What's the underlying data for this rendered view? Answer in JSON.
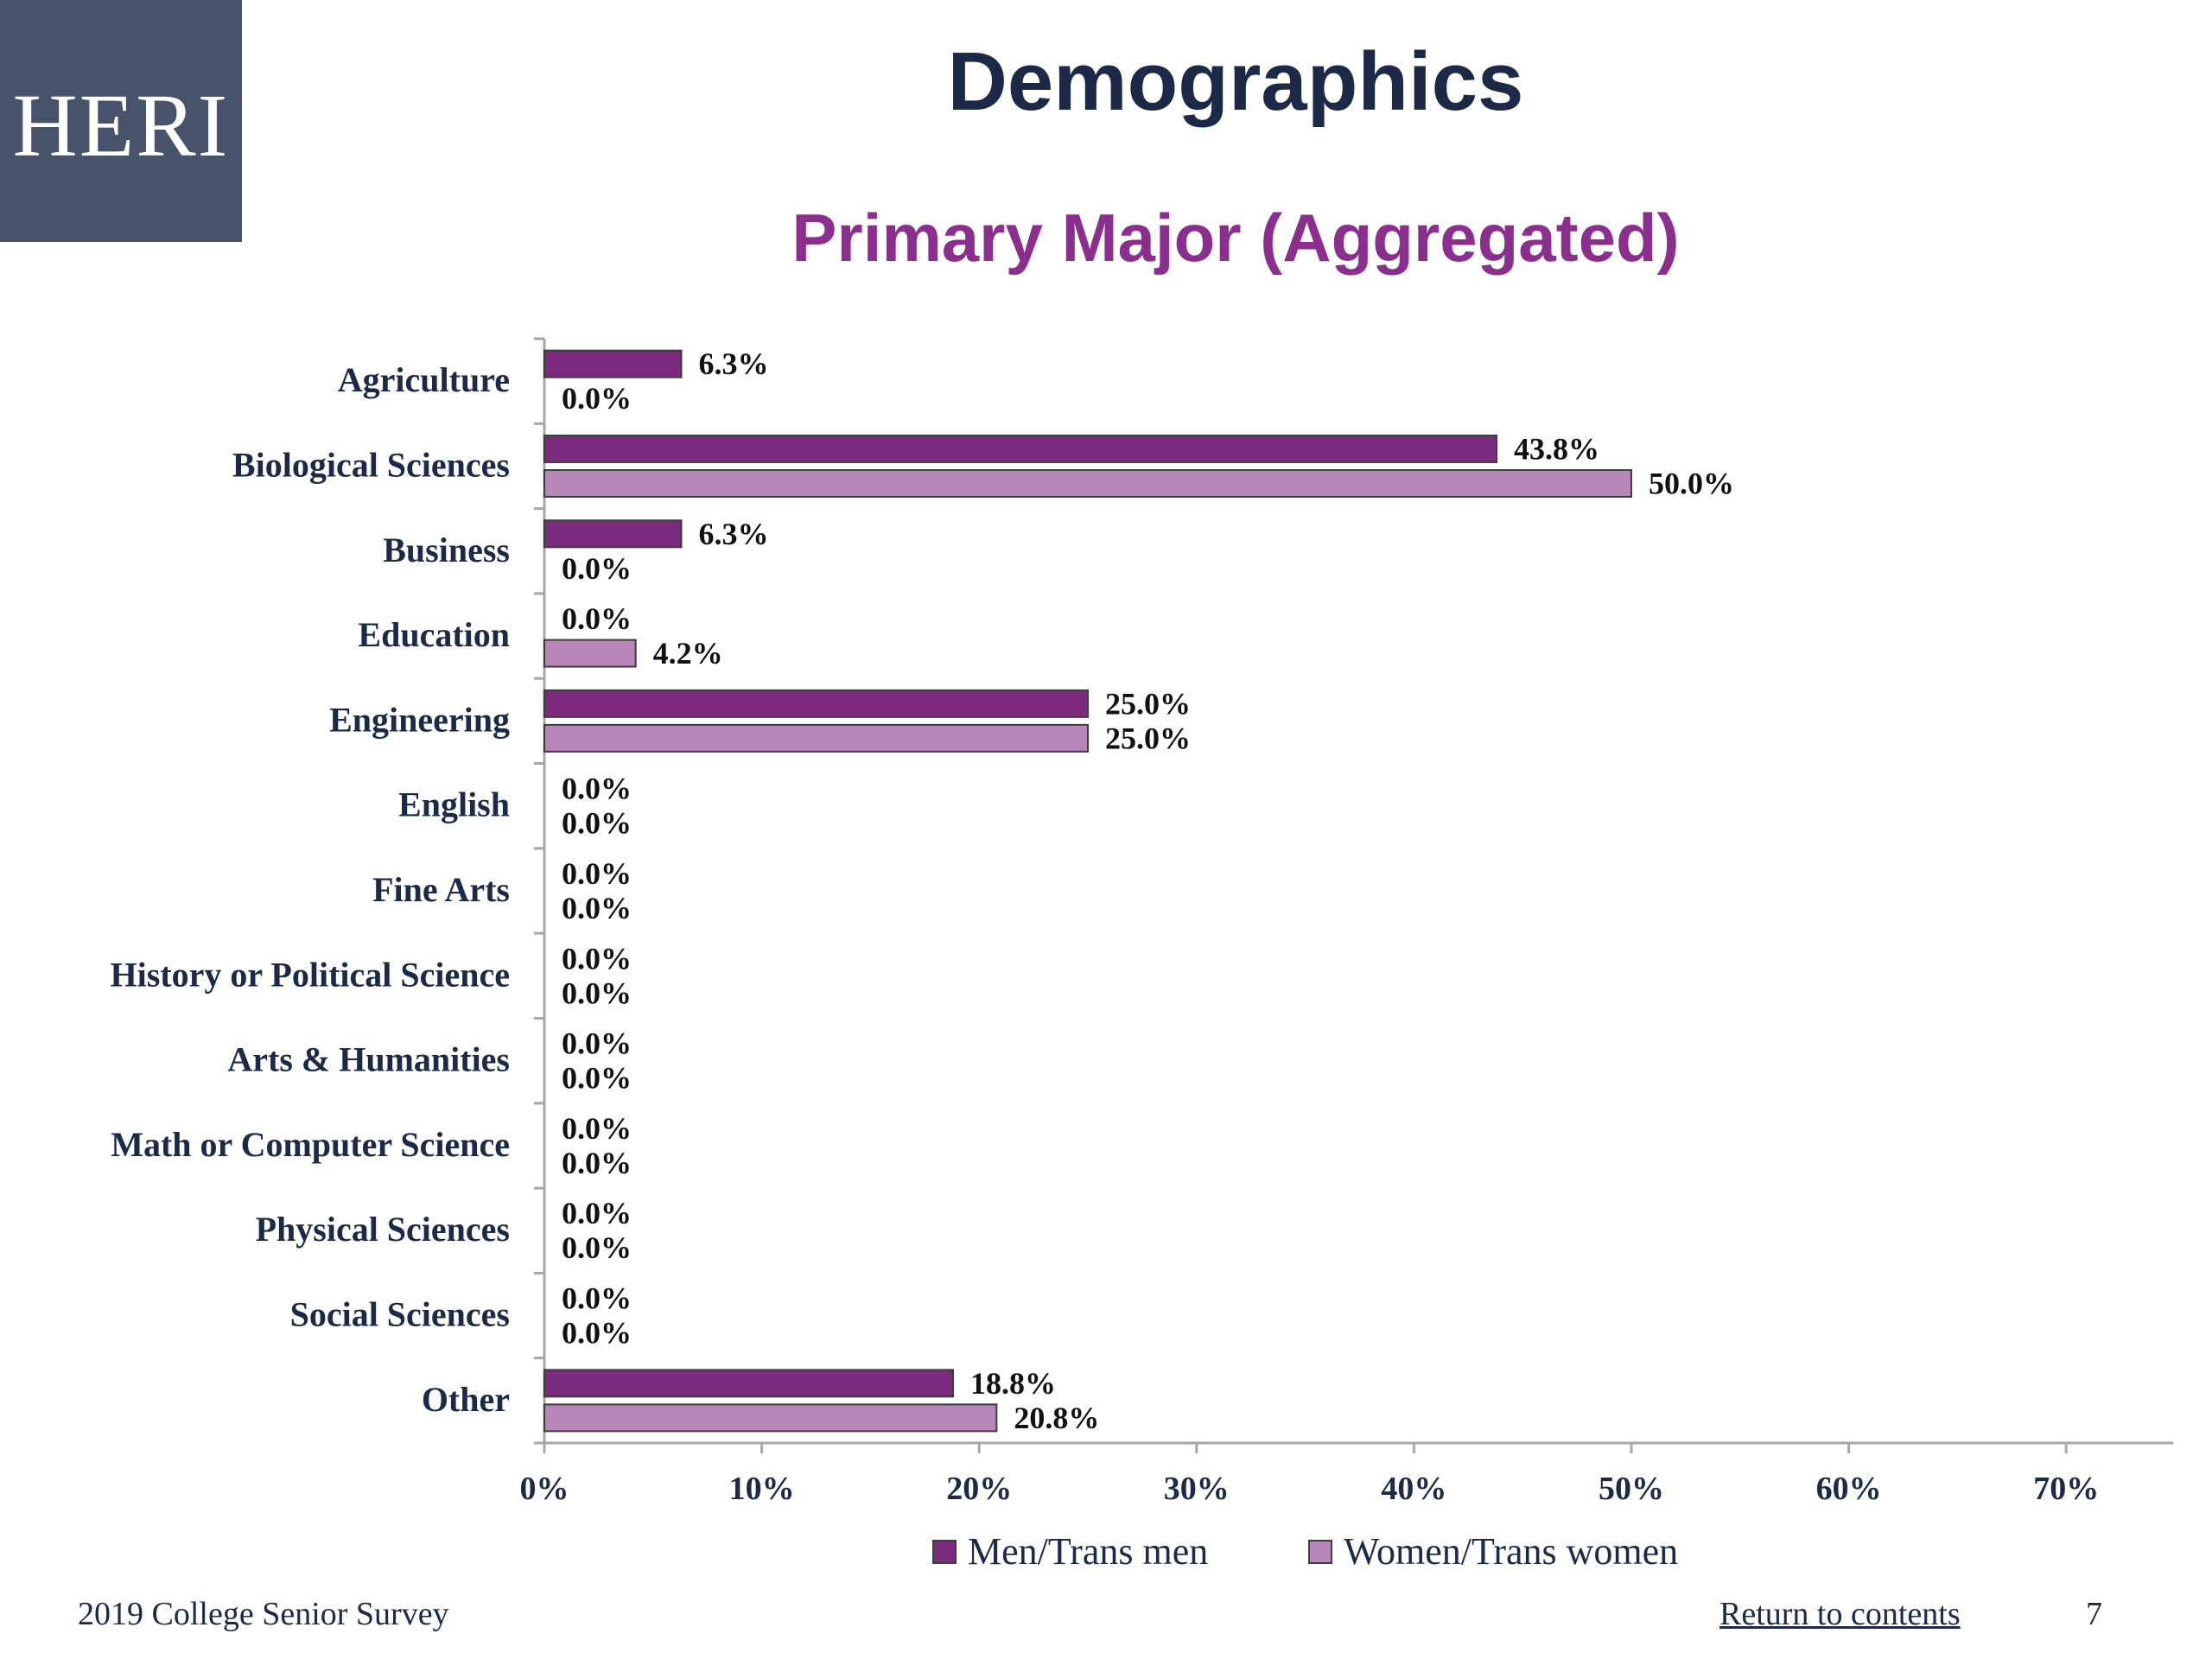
{
  "logo": {
    "text": "HERI"
  },
  "header": {
    "title": "Demographics",
    "subtitle": "Primary Major (Aggregated)"
  },
  "chart_data": {
    "type": "bar",
    "orientation": "horizontal",
    "categories": [
      "Agriculture",
      "Biological Sciences",
      "Business",
      "Education",
      "Engineering",
      "English",
      "Fine Arts",
      "History or Political Science",
      "Arts & Humanities",
      "Math or Computer Science",
      "Physical Sciences",
      "Social Sciences",
      "Other"
    ],
    "series": [
      {
        "name": "Men/Trans men",
        "color": "#7b2a7e",
        "values": [
          6.3,
          43.8,
          6.3,
          0.0,
          25.0,
          0.0,
          0.0,
          0.0,
          0.0,
          0.0,
          0.0,
          0.0,
          18.8
        ]
      },
      {
        "name": "Women/Trans women",
        "color": "#b886b8",
        "values": [
          0.0,
          50.0,
          0.0,
          4.2,
          25.0,
          0.0,
          0.0,
          0.0,
          0.0,
          0.0,
          0.0,
          0.0,
          20.8
        ]
      }
    ],
    "xlim": [
      0,
      75
    ],
    "xticks": [
      0,
      10,
      20,
      30,
      40,
      50,
      60,
      70
    ],
    "xtick_labels": [
      "0%",
      "10%",
      "20%",
      "30%",
      "40%",
      "50%",
      "60%",
      "70%"
    ],
    "value_suffix": "%",
    "grid": false,
    "legend_position": "bottom"
  },
  "footer": {
    "survey": "2019 College Senior Survey",
    "link": "Return to contents",
    "page_number": "7"
  }
}
